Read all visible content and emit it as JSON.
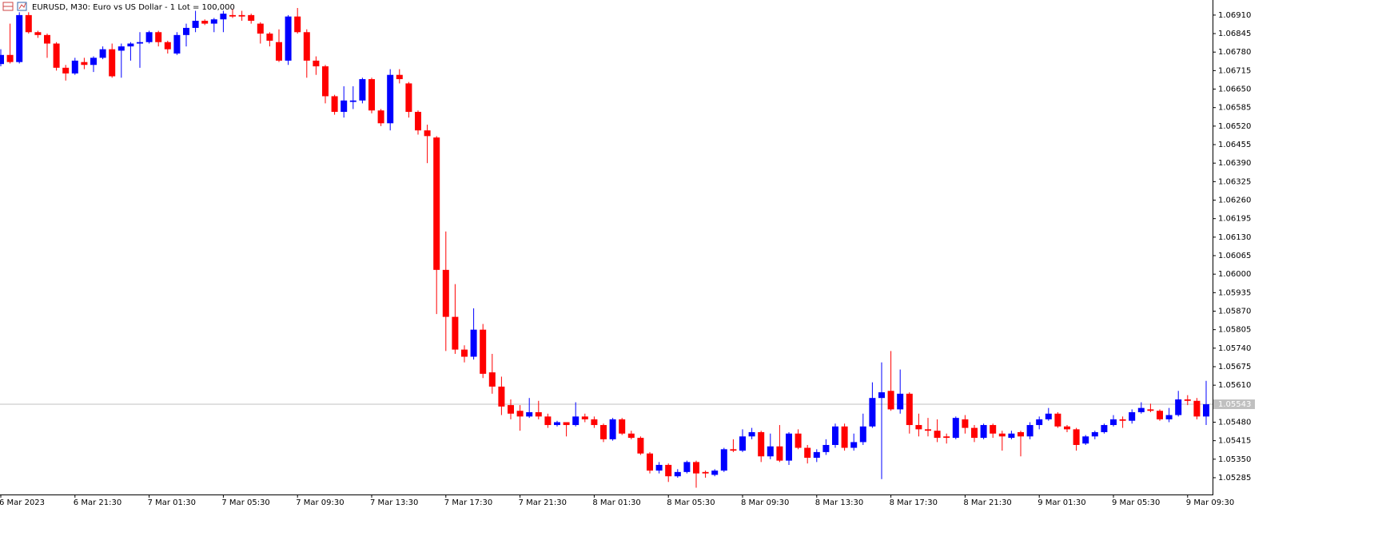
{
  "chart_data": {
    "type": "candlestick",
    "title": "EURUSD, M30:  Euro vs US Dollar - 1 Lot = 100,000",
    "up_color": "#0000ff",
    "down_color": "#ff0000",
    "ylim": [
      1.05226,
      1.06963
    ],
    "yticks": [
      {
        "value": 1.0691,
        "label": "1.06910"
      },
      {
        "value": 1.06845,
        "label": "1.06845"
      },
      {
        "value": 1.0678,
        "label": "1.06780"
      },
      {
        "value": 1.06715,
        "label": "1.06715"
      },
      {
        "value": 1.0665,
        "label": "1.06650"
      },
      {
        "value": 1.06585,
        "label": "1.06585"
      },
      {
        "value": 1.0652,
        "label": "1.06520"
      },
      {
        "value": 1.06455,
        "label": "1.06455"
      },
      {
        "value": 1.0639,
        "label": "1.06390"
      },
      {
        "value": 1.06325,
        "label": "1.06325"
      },
      {
        "value": 1.0626,
        "label": "1.06260"
      },
      {
        "value": 1.06195,
        "label": "1.06195"
      },
      {
        "value": 1.0613,
        "label": "1.06130"
      },
      {
        "value": 1.06065,
        "label": "1.06065"
      },
      {
        "value": 1.06,
        "label": "1.06000"
      },
      {
        "value": 1.05935,
        "label": "1.05935"
      },
      {
        "value": 1.0587,
        "label": "1.05870"
      },
      {
        "value": 1.05805,
        "label": "1.05805"
      },
      {
        "value": 1.0574,
        "label": "1.05740"
      },
      {
        "value": 1.05675,
        "label": "1.05675"
      },
      {
        "value": 1.0561,
        "label": "1.05610"
      },
      {
        "value": 1.0548,
        "label": "1.05480"
      },
      {
        "value": 1.05415,
        "label": "1.05415"
      },
      {
        "value": 1.0535,
        "label": "1.05350"
      },
      {
        "value": 1.05285,
        "label": "1.05285"
      }
    ],
    "current_price": {
      "value": 1.05543,
      "label": "1.05543"
    },
    "categories": [
      "6 Mar 2023",
      null,
      null,
      null,
      null,
      null,
      null,
      null,
      "6 Mar 21:30",
      null,
      null,
      null,
      null,
      null,
      null,
      null,
      "7 Mar 01:30",
      null,
      null,
      null,
      null,
      null,
      null,
      null,
      "7 Mar 05:30",
      null,
      null,
      null,
      null,
      null,
      null,
      null,
      "7 Mar 09:30",
      null,
      null,
      null,
      null,
      null,
      null,
      null,
      "7 Mar 13:30",
      null,
      null,
      null,
      null,
      null,
      null,
      null,
      "7 Mar 17:30",
      null,
      null,
      null,
      null,
      null,
      null,
      null,
      "7 Mar 21:30",
      null,
      null,
      null,
      null,
      null,
      null,
      null,
      "8 Mar 01:30",
      null,
      null,
      null,
      null,
      null,
      null,
      null,
      "8 Mar 05:30",
      null,
      null,
      null,
      null,
      null,
      null,
      null,
      "8 Mar 09:30",
      null,
      null,
      null,
      null,
      null,
      null,
      null,
      "8 Mar 13:30",
      null,
      null,
      null,
      null,
      null,
      null,
      null,
      "8 Mar 17:30",
      null,
      null,
      null,
      null,
      null,
      null,
      null,
      "8 Mar 21:30",
      null,
      null,
      null,
      null,
      null,
      null,
      null,
      "9 Mar 01:30",
      null,
      null,
      null,
      null,
      null,
      null,
      null,
      "9 Mar 05:30",
      null,
      null,
      null,
      null,
      null,
      null,
      null,
      "9 Mar 09:30",
      null,
      null
    ],
    "open": [
      1.06738,
      1.0677,
      1.06745,
      1.0691,
      1.0685,
      1.0684,
      1.0681,
      1.06725,
      1.06705,
      1.06745,
      1.06735,
      1.0676,
      1.0679,
      1.06785,
      1.068,
      1.0681,
      1.06815,
      1.0685,
      1.06815,
      1.06775,
      1.0684,
      1.06865,
      1.0689,
      1.0688,
      1.06895,
      1.0691,
      1.0691,
      1.0691,
      1.0688,
      1.06845,
      1.06815,
      1.0675,
      1.06905,
      1.0685,
      1.0675,
      1.0673,
      1.06625,
      1.0657,
      1.06605,
      1.0661,
      1.06685,
      1.06575,
      1.0653,
      1.067,
      1.0667,
      1.0657,
      1.06505,
      1.0648,
      1.06015,
      1.0585,
      1.05735,
      1.0571,
      1.05805,
      1.05655,
      1.05605,
      1.0554,
      1.0552,
      1.055,
      1.05515,
      1.055,
      1.0547,
      1.0548,
      1.0547,
      1.055,
      1.0549,
      1.0547,
      1.0542,
      1.0549,
      1.0544,
      1.05425,
      1.0537,
      1.0531,
      1.0533,
      1.0529,
      1.05305,
      1.0534,
      1.05305,
      1.05295,
      1.0531,
      1.05385,
      1.0538,
      1.0543,
      1.05445,
      1.0536,
      1.05395,
      1.05345,
      1.0544,
      1.0539,
      1.05355,
      1.05375,
      1.054,
      1.05465,
      1.0539,
      1.0541,
      1.05465,
      1.05565,
      1.0559,
      1.05525,
      1.0558,
      1.0547,
      1.05455,
      1.0545,
      1.0543,
      1.05425,
      1.0549,
      1.0546,
      1.05425,
      1.0547,
      1.0544,
      1.05425,
      1.05445,
      1.0543,
      1.0547,
      1.0549,
      1.0551,
      1.05465,
      1.05455,
      1.05405,
      1.0543,
      1.05445,
      1.0547,
      1.0549,
      1.05485,
      1.05515,
      1.05525,
      1.0552,
      1.0549,
      1.05505,
      1.0556,
      1.05555,
      1.055
    ],
    "high": [
      1.0679,
      1.0688,
      1.0692,
      1.0692,
      1.06855,
      1.06845,
      1.06815,
      1.06735,
      1.0676,
      1.0676,
      1.06765,
      1.068,
      1.0681,
      1.0681,
      1.06815,
      1.0685,
      1.06855,
      1.06855,
      1.0682,
      1.0685,
      1.0688,
      1.06925,
      1.06895,
      1.069,
      1.06925,
      1.0693,
      1.06925,
      1.06915,
      1.06885,
      1.0685,
      1.0686,
      1.0691,
      1.06935,
      1.0686,
      1.06765,
      1.06735,
      1.0663,
      1.0666,
      1.0666,
      1.0669,
      1.0669,
      1.0658,
      1.0672,
      1.0672,
      1.06675,
      1.06575,
      1.06525,
      1.06485,
      1.0615,
      1.05965,
      1.0575,
      1.0588,
      1.05825,
      1.0572,
      1.0564,
      1.0556,
      1.0554,
      1.05565,
      1.05555,
      1.0551,
      1.05485,
      1.0548,
      1.0555,
      1.0551,
      1.055,
      1.05475,
      1.05495,
      1.05495,
      1.0545,
      1.0543,
      1.05375,
      1.0534,
      1.05335,
      1.05315,
      1.05345,
      1.05345,
      1.0531,
      1.05315,
      1.0539,
      1.0542,
      1.05455,
      1.0546,
      1.0545,
      1.0544,
      1.0547,
      1.05445,
      1.05455,
      1.054,
      1.05385,
      1.0542,
      1.05475,
      1.05475,
      1.0544,
      1.0551,
      1.0562,
      1.0569,
      1.0573,
      1.05665,
      1.05585,
      1.0551,
      1.05495,
      1.0549,
      1.0544,
      1.055,
      1.05505,
      1.0547,
      1.05475,
      1.05475,
      1.0545,
      1.0545,
      1.0545,
      1.0548,
      1.055,
      1.0553,
      1.05515,
      1.0547,
      1.0546,
      1.05435,
      1.0545,
      1.05475,
      1.05505,
      1.055,
      1.05525,
      1.0555,
      1.05545,
      1.05525,
      1.0553,
      1.0559,
      1.05575,
      1.05565,
      1.05625
    ],
    "low": [
      1.0673,
      1.0674,
      1.0674,
      1.06845,
      1.0683,
      1.0676,
      1.06715,
      1.0668,
      1.067,
      1.0672,
      1.0671,
      1.06755,
      1.0669,
      1.0669,
      1.0675,
      1.06725,
      1.0681,
      1.068,
      1.06775,
      1.0677,
      1.068,
      1.0685,
      1.06875,
      1.0685,
      1.0685,
      1.069,
      1.0689,
      1.0688,
      1.0681,
      1.068,
      1.06745,
      1.06735,
      1.06845,
      1.0669,
      1.067,
      1.066,
      1.0656,
      1.0655,
      1.0658,
      1.066,
      1.06565,
      1.0652,
      1.06505,
      1.0667,
      1.0655,
      1.0649,
      1.0639,
      1.0586,
      1.0573,
      1.0572,
      1.0569,
      1.057,
      1.05635,
      1.0558,
      1.05505,
      1.0549,
      1.0545,
      1.05495,
      1.0549,
      1.0546,
      1.05465,
      1.0543,
      1.05465,
      1.0548,
      1.0546,
      1.0541,
      1.05415,
      1.05435,
      1.0542,
      1.05365,
      1.053,
      1.053,
      1.0527,
      1.05285,
      1.053,
      1.0525,
      1.05285,
      1.0529,
      1.05305,
      1.05375,
      1.05375,
      1.0542,
      1.0534,
      1.0535,
      1.0534,
      1.0533,
      1.05385,
      1.05335,
      1.0534,
      1.05365,
      1.0539,
      1.0538,
      1.0538,
      1.054,
      1.0546,
      1.0528,
      1.0552,
      1.0551,
      1.0544,
      1.0543,
      1.0543,
      1.0541,
      1.05405,
      1.0542,
      1.0544,
      1.0541,
      1.0542,
      1.05425,
      1.0538,
      1.0542,
      1.0536,
      1.0542,
      1.05455,
      1.05485,
      1.0546,
      1.05445,
      1.0538,
      1.054,
      1.0542,
      1.0544,
      1.05465,
      1.0546,
      1.05475,
      1.0551,
      1.05515,
      1.05485,
      1.0548,
      1.055,
      1.0554,
      1.0549,
      1.0547
    ],
    "close": [
      1.0677,
      1.06745,
      1.0691,
      1.0685,
      1.0684,
      1.0681,
      1.06725,
      1.06705,
      1.0675,
      1.06735,
      1.0676,
      1.0679,
      1.06695,
      1.068,
      1.0681,
      1.06815,
      1.0685,
      1.06815,
      1.0679,
      1.0684,
      1.06865,
      1.0689,
      1.0688,
      1.06895,
      1.06915,
      1.06905,
      1.06905,
      1.0689,
      1.06845,
      1.0682,
      1.0675,
      1.06905,
      1.0685,
      1.0675,
      1.0673,
      1.06625,
      1.0657,
      1.0661,
      1.0661,
      1.06685,
      1.06575,
      1.0653,
      1.067,
      1.06685,
      1.0657,
      1.06505,
      1.06485,
      1.06015,
      1.0585,
      1.05735,
      1.0571,
      1.05805,
      1.0565,
      1.05605,
      1.05535,
      1.0551,
      1.055,
      1.05515,
      1.055,
      1.0547,
      1.0548,
      1.0547,
      1.055,
      1.0549,
      1.0547,
      1.0542,
      1.0549,
      1.0544,
      1.05425,
      1.0537,
      1.0531,
      1.0533,
      1.0529,
      1.05305,
      1.0534,
      1.053,
      1.053,
      1.0531,
      1.05385,
      1.0538,
      1.0543,
      1.05445,
      1.0536,
      1.05395,
      1.05345,
      1.0544,
      1.0539,
      1.05355,
      1.05375,
      1.054,
      1.05465,
      1.0539,
      1.0541,
      1.05465,
      1.05565,
      1.05585,
      1.05525,
      1.0558,
      1.0547,
      1.05455,
      1.0545,
      1.05425,
      1.05425,
      1.05495,
      1.0546,
      1.05425,
      1.0547,
      1.0544,
      1.0543,
      1.0544,
      1.0543,
      1.0547,
      1.0549,
      1.0551,
      1.05465,
      1.05455,
      1.054,
      1.0543,
      1.05445,
      1.0547,
      1.0549,
      1.05485,
      1.05515,
      1.0553,
      1.0552,
      1.0549,
      1.05505,
      1.0556,
      1.05555,
      1.055,
      1.05543
    ]
  }
}
